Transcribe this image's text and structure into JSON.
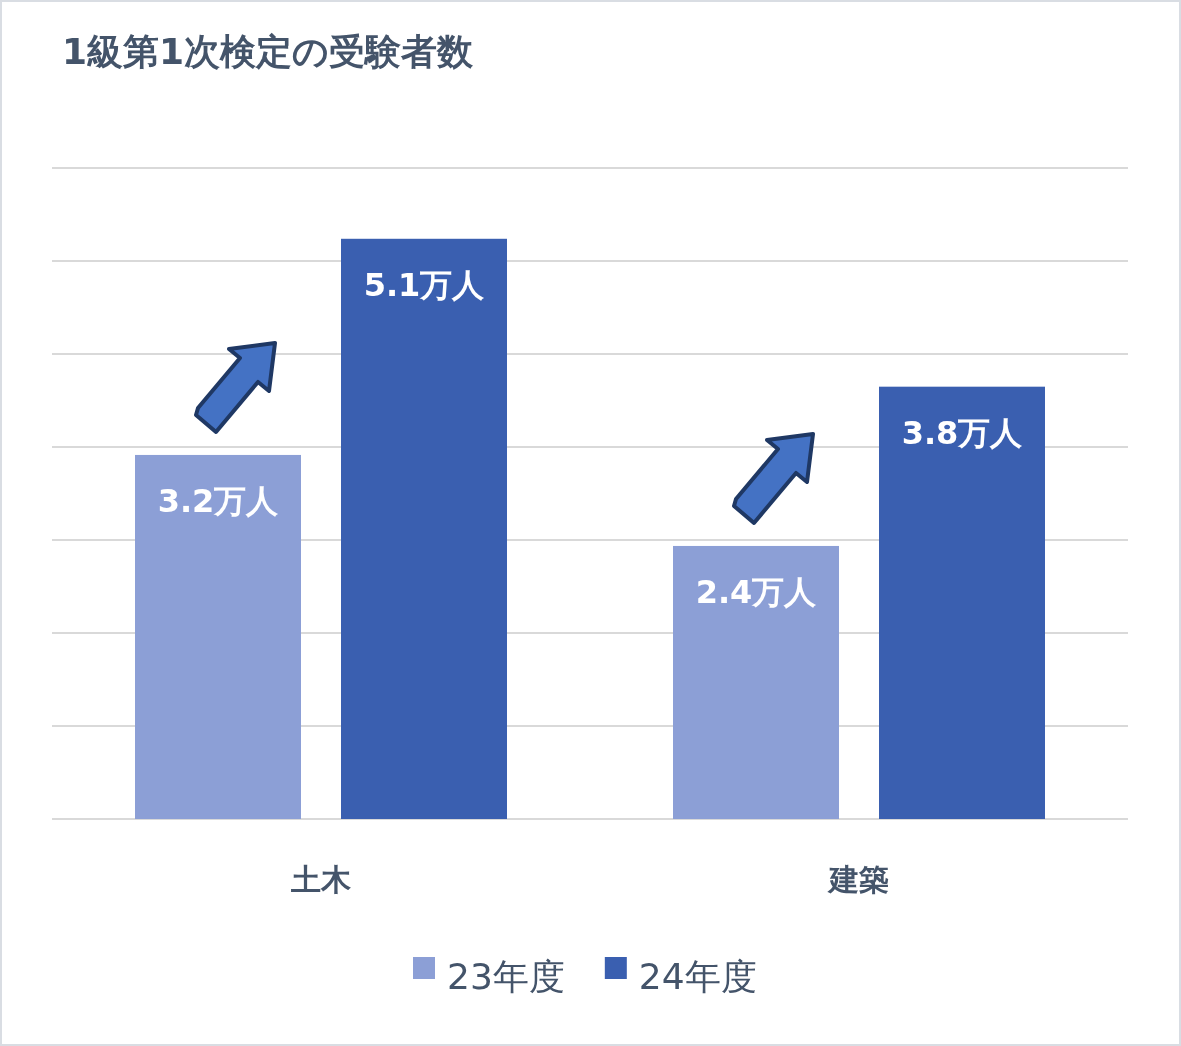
{
  "chart_data": {
    "type": "bar",
    "title": "1級第1次検定の受験者数",
    "categories": [
      "土木",
      "建築"
    ],
    "grid": "y",
    "legend": "bottom",
    "series": [
      {
        "name": "23年度",
        "color": "#8c9fd6",
        "values": [
          3.2,
          2.4
        ],
        "value_labels": [
          "3.2万人",
          "2.4万人"
        ]
      },
      {
        "name": "24年度",
        "color": "#3a5fb0",
        "values": [
          5.1,
          3.8
        ],
        "value_labels": [
          "5.1万人",
          "3.8万人"
        ]
      }
    ]
  }
}
